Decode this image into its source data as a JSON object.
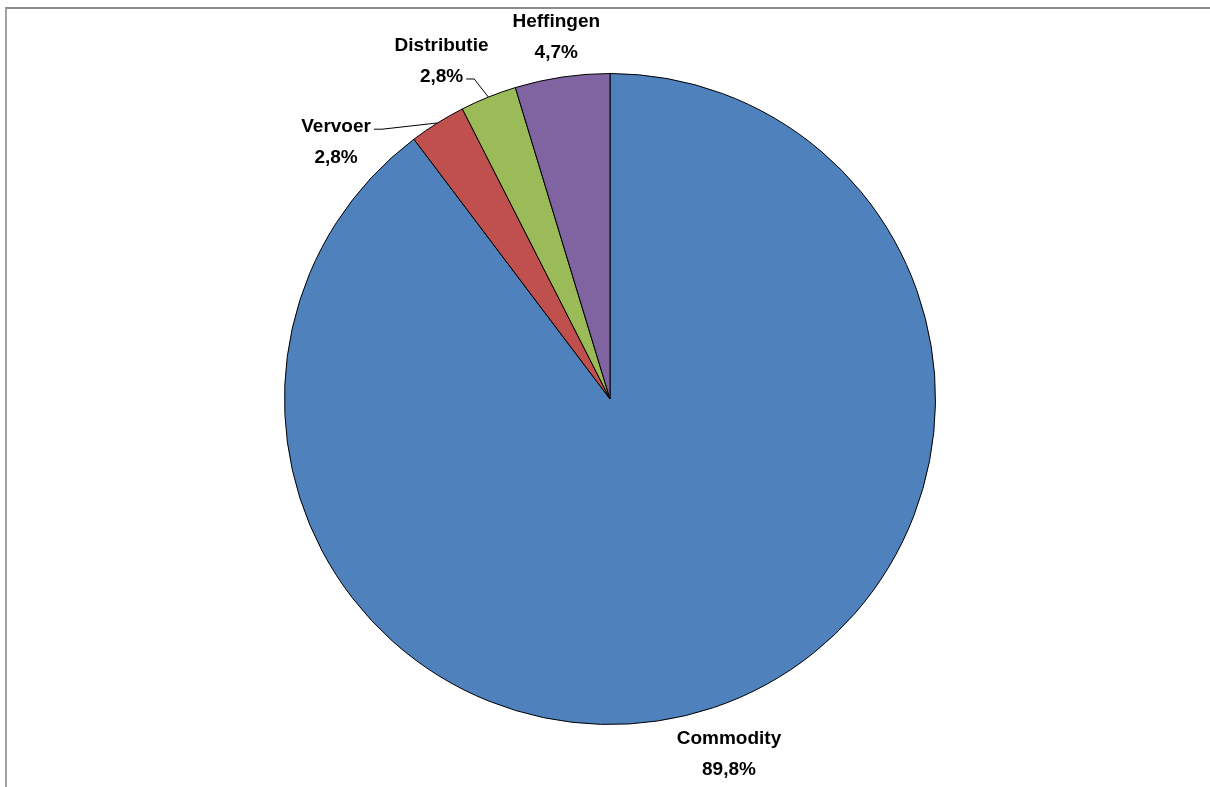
{
  "chart_data": {
    "type": "pie",
    "categories": [
      "Commodity",
      "Vervoer",
      "Distributie",
      "Heffingen"
    ],
    "values": [
      89.8,
      2.8,
      2.8,
      4.7
    ],
    "colors": [
      "#4f81bd",
      "#c0504d",
      "#9bbb59",
      "#8064a2"
    ],
    "value_labels": [
      "89,8%",
      "2,8%",
      "2,8%",
      "4,7%"
    ],
    "legend": false
  }
}
